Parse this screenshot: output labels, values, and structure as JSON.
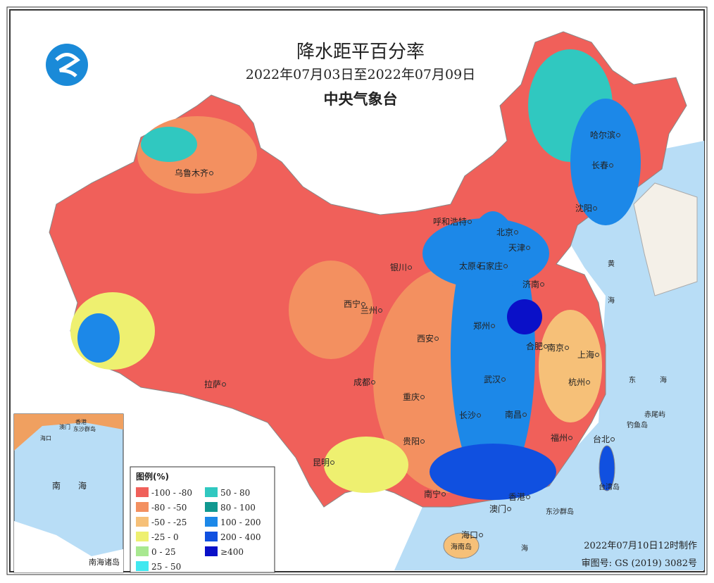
{
  "header": {
    "title": "降水距平百分率",
    "period": "2022年07月03日至2022年07月09日",
    "agency": "中央气象台"
  },
  "legend": {
    "title": "图例(%)",
    "items": [
      {
        "label": "-100 - -80",
        "color": "#f0605a"
      },
      {
        "label": "-80 - -50",
        "color": "#f39060"
      },
      {
        "label": "-50 - -25",
        "color": "#f6c078"
      },
      {
        "label": "-25 - 0",
        "color": "#eef070"
      },
      {
        "label": "0 - 25",
        "color": "#a8e890"
      },
      {
        "label": "25 - 50",
        "color": "#40e8f0"
      },
      {
        "label": "50 - 80",
        "color": "#30c8c0"
      },
      {
        "label": "80 - 100",
        "color": "#109890"
      },
      {
        "label": "100 - 200",
        "color": "#1c88e8"
      },
      {
        "label": "200 - 400",
        "color": "#1050e0"
      },
      {
        "label": "≥400",
        "color": "#0a10c8"
      }
    ]
  },
  "cities": [
    "乌鲁木齐",
    "哈尔滨",
    "长春",
    "沈阳",
    "呼和浩特",
    "北京",
    "天津",
    "银川",
    "太原",
    "石家庄",
    "济南",
    "西宁",
    "兰州",
    "郑州",
    "西安",
    "合肥",
    "南京",
    "上海",
    "拉萨",
    "成都",
    "武汉",
    "杭州",
    "重庆",
    "长沙",
    "南昌",
    "福州",
    "台北",
    "贵阳",
    "昆明",
    "南宁",
    "香港",
    "澳门",
    "海口"
  ],
  "places": [
    "黄",
    "海",
    "东",
    "海",
    "赤尾屿",
    "钓鱼岛",
    "台湾岛",
    "东沙群岛",
    "海南岛",
    "海"
  ],
  "inset": {
    "label": "南海诸岛",
    "places": [
      "香港",
      "澳门",
      "东沙群岛",
      "海口",
      "南",
      "海"
    ]
  },
  "footer": {
    "made": "2022年07月10日12时制作",
    "approval": "审图号: GS (2019) 3082号"
  }
}
